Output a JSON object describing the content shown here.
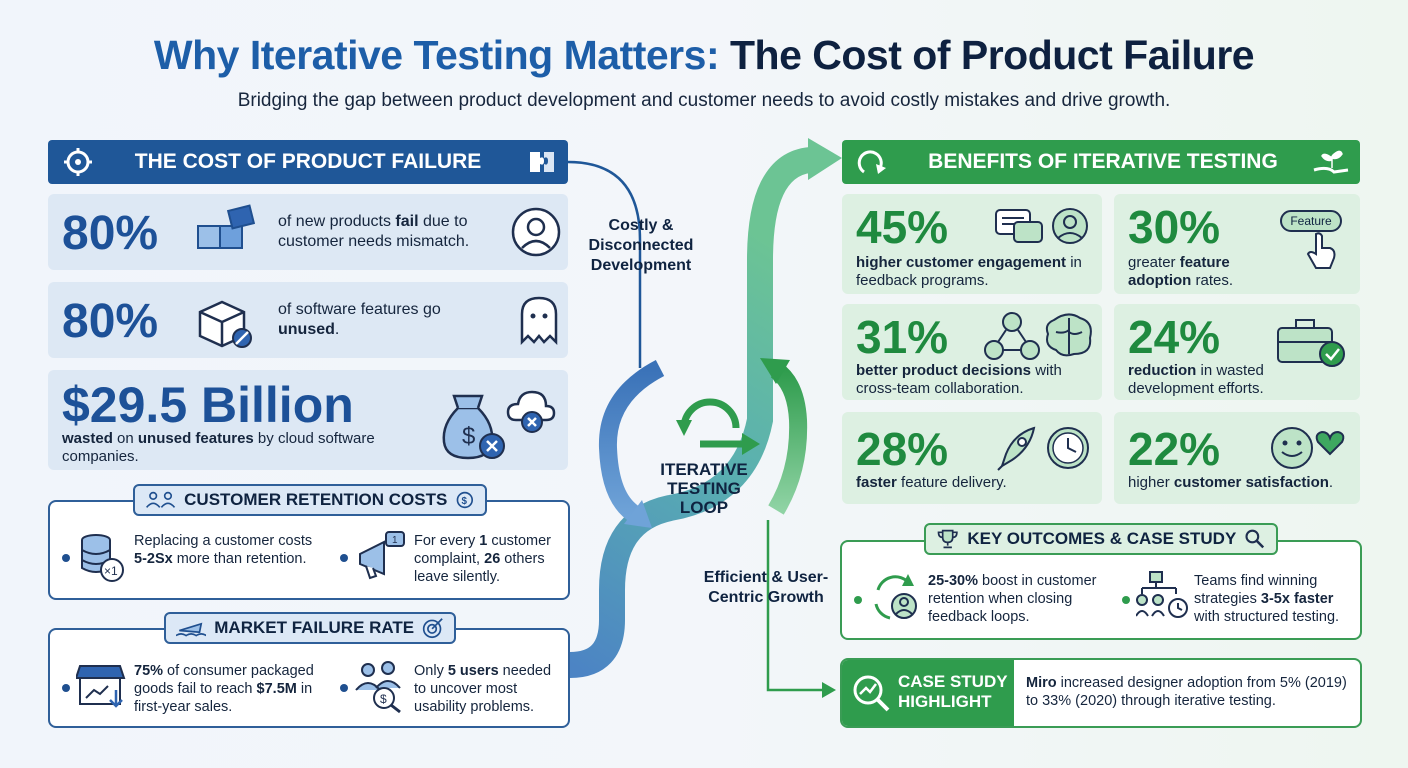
{
  "title": {
    "part1": "Why Iterative Testing Matters:",
    "part2": "The Cost of Product Failure",
    "subtitle": "Bridging the gap between product development and customer needs to avoid costly mistakes and drive growth."
  },
  "cost_section": {
    "header": "THE COST OF PRODUCT FAILURE",
    "stat1": {
      "value": "80%",
      "text_a": "of new products ",
      "text_b": "fail",
      "text_c": " due to customer needs mismatch."
    },
    "stat2": {
      "value": "80%",
      "text_a": "of software features go ",
      "text_b": "unused",
      "text_c": "."
    },
    "stat3": {
      "value": "$29.5 Billion",
      "text_a": "wasted",
      "text_b": " on ",
      "text_c": "unused features",
      "text_d": " by cloud software companies."
    }
  },
  "retention": {
    "title": "CUSTOMER RETENTION COSTS",
    "item1": {
      "a": "Replacing a customer costs ",
      "b": "5-2Sx",
      "c": " more than retention."
    },
    "item2": {
      "a": "For every ",
      "b": "1",
      "c": " customer complaint, ",
      "d": "26",
      "e": " others leave silently."
    }
  },
  "market": {
    "title": "MARKET FAILURE RATE",
    "item1": {
      "a": "75%",
      "b": " of consumer packaged goods fail to reach ",
      "c": "$7.5M",
      "d": " in first-year sales."
    },
    "item2": {
      "a": "Only ",
      "b": "5 users",
      "c": " needed to uncover most usability problems."
    }
  },
  "flow": {
    "top_label": "Costly & Disconnected Development",
    "bottom_label": "Efficient & User-Centric Growth",
    "loop_label": "ITERATIVE TESTING LOOP"
  },
  "benefits": {
    "header": "BENEFITS OF ITERATIVE TESTING",
    "feature_badge": "Feature",
    "cards": [
      {
        "value": "45%",
        "bold": "higher customer engagement",
        "rest": " in feedback programs."
      },
      {
        "value": "30%",
        "pre": "greater ",
        "bold": "feature adoption",
        "rest": " rates."
      },
      {
        "value": "31%",
        "bold": "better product decisions",
        "rest": " with cross-team collaboration."
      },
      {
        "value": "24%",
        "bold": "reduction",
        "rest": " in wasted development efforts."
      },
      {
        "value": "28%",
        "bold": "faster",
        "rest": " feature delivery."
      },
      {
        "value": "22%",
        "pre": "higher ",
        "bold": "customer satisfaction",
        "rest": "."
      }
    ]
  },
  "outcomes": {
    "title": "KEY OUTCOMES & CASE STUDY",
    "item1": {
      "a": "25-30%",
      "b": " boost in customer retention when closing feedback loops."
    },
    "item2": {
      "a": "Teams find winning strategies ",
      "b": "3-5x faster",
      "c": " with structured testing."
    }
  },
  "case_study": {
    "label_line1": "CASE STUDY",
    "label_line2": "HIGHLIGHT",
    "a": "Miro",
    "b": " increased designer adoption from 5% (2019) to 33% (2020) through iterative testing."
  },
  "colors": {
    "blue_dark": "#1f5798",
    "blue_text": "#1d5198",
    "green": "#2f9c4d",
    "green_text": "#1f8a3f",
    "navy": "#0f2340"
  }
}
